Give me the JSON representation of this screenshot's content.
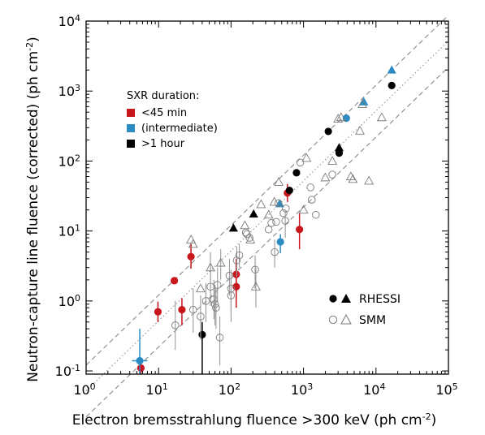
{
  "chart_data": {
    "type": "scatter",
    "xlabel_main": "Electron bremsstrahlung fluence >300 keV (ph cm",
    "xlabel_exp": "-2",
    "xlabel_close": ")",
    "ylabel_main": "Neutron-capture line fluence (corrected)  (ph cm",
    "ylabel_exp": "-2",
    "ylabel_close": ")",
    "x_scale": "log",
    "y_scale": "log",
    "xlim": [
      1,
      100000
    ],
    "ylim": [
      0.09,
      10000
    ],
    "x_ticks": [
      {
        "value": 1,
        "base": "10",
        "exp": "0"
      },
      {
        "value": 10,
        "base": "10",
        "exp": "1"
      },
      {
        "value": 100,
        "base": "10",
        "exp": "2"
      },
      {
        "value": 1000,
        "base": "10",
        "exp": "3"
      },
      {
        "value": 10000,
        "base": "10",
        "exp": "4"
      },
      {
        "value": 100000,
        "base": "10",
        "exp": "5"
      }
    ],
    "y_ticks": [
      {
        "value": 0.1,
        "base": "10",
        "exp": "-1"
      },
      {
        "value": 1,
        "base": "10",
        "exp": "0"
      },
      {
        "value": 10,
        "base": "10",
        "exp": "1"
      },
      {
        "value": 100,
        "base": "10",
        "exp": "2"
      },
      {
        "value": 1000,
        "base": "10",
        "exp": "3"
      },
      {
        "value": 10000,
        "base": "10",
        "exp": "4"
      }
    ],
    "reference_lines": [
      {
        "style": "dashed",
        "points": [
          [
            1,
            0.121
          ],
          [
            100000,
            12100
          ]
        ]
      },
      {
        "style": "dotted",
        "points": [
          [
            1,
            0.052
          ],
          [
            100000,
            5200
          ]
        ]
      },
      {
        "style": "dashed",
        "points": [
          [
            1,
            0.022
          ],
          [
            100000,
            2200
          ]
        ]
      }
    ],
    "color_legend": {
      "title": "SXR duration:",
      "items": [
        {
          "label": "<45 min",
          "color": "#c8161d"
        },
        {
          "label": "(intermediate)",
          "color": "#2b8cc4"
        },
        {
          "label": ">1 hour",
          "color": "#000000"
        }
      ]
    },
    "instrument_legend": [
      {
        "label": "RHESSI",
        "style": "filled"
      },
      {
        "label": "SMM",
        "style": "open"
      }
    ],
    "series": [
      {
        "name": "RHESSI",
        "points": [
          {
            "x": 5.7,
            "y": 0.11,
            "color": "red",
            "marker": "circle",
            "yerr": [
              0.09,
              0.15
            ]
          },
          {
            "x": 9.8,
            "y": 0.7,
            "color": "red",
            "marker": "circle",
            "yerr": [
              0.5,
              0.98
            ]
          },
          {
            "x": 16.5,
            "y": 1.95,
            "color": "red",
            "marker": "circle"
          },
          {
            "x": 21,
            "y": 0.75,
            "color": "red",
            "marker": "circle",
            "yerr": [
              0.45,
              1.1
            ]
          },
          {
            "x": 28,
            "y": 4.3,
            "color": "red",
            "marker": "circle",
            "yerr": [
              2.9,
              6.5
            ]
          },
          {
            "x": 118,
            "y": 2.4,
            "color": "red",
            "marker": "circle",
            "yerr": [
              1.3,
              4.0
            ]
          },
          {
            "x": 118,
            "y": 1.6,
            "color": "red",
            "marker": "circle",
            "yerr": [
              0.8,
              2.7
            ]
          },
          {
            "x": 600,
            "y": 35,
            "color": "red",
            "marker": "circle",
            "yerr": [
              26,
              47
            ]
          },
          {
            "x": 880,
            "y": 10.5,
            "color": "red",
            "marker": "circle",
            "yerr": [
              5.5,
              18
            ]
          },
          {
            "x": 5.5,
            "y": 0.14,
            "color": "blue",
            "marker": "circle",
            "yerr": [
              0.09,
              0.4
            ],
            "xerr": [
              4.3,
              7.0
            ]
          },
          {
            "x": 480,
            "y": 7.0,
            "color": "blue",
            "marker": "circle",
            "yerr": [
              4.8,
              9.0
            ]
          },
          {
            "x": 3900,
            "y": 410,
            "color": "blue",
            "marker": "circle"
          },
          {
            "x": 40,
            "y": 0.33,
            "color": "black",
            "marker": "circle",
            "yerr": [
              0.09,
              0.5
            ]
          },
          {
            "x": 640,
            "y": 38,
            "color": "black",
            "marker": "circle"
          },
          {
            "x": 800,
            "y": 68,
            "color": "black",
            "marker": "circle"
          },
          {
            "x": 2200,
            "y": 265,
            "color": "black",
            "marker": "circle"
          },
          {
            "x": 3100,
            "y": 130,
            "color": "black",
            "marker": "circle"
          },
          {
            "x": 16500,
            "y": 1200,
            "color": "black",
            "marker": "circle"
          },
          {
            "x": 108,
            "y": 11,
            "color": "black",
            "marker": "triangle"
          },
          {
            "x": 205,
            "y": 17.5,
            "color": "black",
            "marker": "triangle"
          },
          {
            "x": 3100,
            "y": 155,
            "color": "black",
            "marker": "triangle"
          },
          {
            "x": 470,
            "y": 24.5,
            "color": "blue",
            "marker": "triangle"
          },
          {
            "x": 6800,
            "y": 700,
            "color": "blue",
            "marker": "triangle"
          },
          {
            "x": 16500,
            "y": 2000,
            "color": "blue",
            "marker": "triangle"
          }
        ]
      },
      {
        "name": "SMM",
        "points": [
          {
            "x": 17,
            "y": 0.45,
            "marker": "circle",
            "yerr": [
              0.2,
              1.0
            ]
          },
          {
            "x": 30,
            "y": 0.75,
            "marker": "circle",
            "yerr": [
              0.35,
              1.5
            ]
          },
          {
            "x": 38,
            "y": 0.6,
            "marker": "circle",
            "yerr": [
              0.28,
              1.2
            ]
          },
          {
            "x": 45,
            "y": 1.0,
            "marker": "circle",
            "yerr": [
              0.5,
              1.8
            ]
          },
          {
            "x": 52,
            "y": 1.6,
            "marker": "circle",
            "yerr": [
              0.85,
              2.7
            ]
          },
          {
            "x": 58,
            "y": 1.05,
            "marker": "circle",
            "yerr": [
              0.55,
              2.0
            ]
          },
          {
            "x": 60,
            "y": 0.9,
            "marker": "circle",
            "yerr": [
              0.45,
              1.7
            ]
          },
          {
            "x": 62,
            "y": 0.8,
            "marker": "circle",
            "yerr": [
              0.4,
              1.5
            ]
          },
          {
            "x": 65,
            "y": 1.7,
            "marker": "circle",
            "yerr": [
              0.95,
              3.0
            ]
          },
          {
            "x": 70,
            "y": 0.3,
            "marker": "circle",
            "yerr": [
              0.12,
              0.6
            ]
          },
          {
            "x": 95,
            "y": 2.3,
            "marker": "circle",
            "yerr": [
              1.2,
              4.0
            ]
          },
          {
            "x": 100,
            "y": 1.5,
            "marker": "circle",
            "yerr": [
              0.7,
              2.8
            ]
          },
          {
            "x": 100,
            "y": 1.2,
            "marker": "circle",
            "yerr": [
              0.5,
              2.2
            ]
          },
          {
            "x": 120,
            "y": 3.8,
            "marker": "circle",
            "yerr": [
              2.2,
              6.0
            ]
          },
          {
            "x": 130,
            "y": 4.5,
            "marker": "circle",
            "yerr": [
              3.0,
              6.5
            ]
          },
          {
            "x": 160,
            "y": 9.5,
            "marker": "circle"
          },
          {
            "x": 165,
            "y": 9.0,
            "marker": "circle"
          },
          {
            "x": 180,
            "y": 8.0,
            "marker": "circle"
          },
          {
            "x": 215,
            "y": 2.8,
            "marker": "circle",
            "yerr": [
              1.5,
              4.5
            ]
          },
          {
            "x": 330,
            "y": 10.5,
            "marker": "circle"
          },
          {
            "x": 360,
            "y": 13,
            "marker": "circle"
          },
          {
            "x": 400,
            "y": 5.0,
            "marker": "circle",
            "yerr": [
              3.0,
              7.5
            ]
          },
          {
            "x": 420,
            "y": 13.5,
            "marker": "circle"
          },
          {
            "x": 450,
            "y": 25,
            "marker": "circle"
          },
          {
            "x": 530,
            "y": 18,
            "marker": "circle"
          },
          {
            "x": 560,
            "y": 14,
            "marker": "circle",
            "yerr": [
              8.0,
              20
            ]
          },
          {
            "x": 570,
            "y": 21,
            "marker": "circle"
          },
          {
            "x": 900,
            "y": 95,
            "marker": "circle"
          },
          {
            "x": 1250,
            "y": 42,
            "marker": "circle"
          },
          {
            "x": 1300,
            "y": 28,
            "marker": "circle"
          },
          {
            "x": 1480,
            "y": 17,
            "marker": "circle"
          },
          {
            "x": 2500,
            "y": 64,
            "marker": "circle"
          },
          {
            "x": 28,
            "y": 7.5,
            "marker": "triangle"
          },
          {
            "x": 30,
            "y": 6.5,
            "marker": "triangle"
          },
          {
            "x": 38,
            "y": 1.5,
            "marker": "triangle"
          },
          {
            "x": 52,
            "y": 3.0,
            "marker": "triangle",
            "yerr": [
              1.5,
              5.0
            ]
          },
          {
            "x": 72,
            "y": 3.5,
            "marker": "triangle",
            "yerr": [
              2.0,
              5.5
            ]
          },
          {
            "x": 155,
            "y": 12,
            "marker": "triangle"
          },
          {
            "x": 185,
            "y": 7.5,
            "marker": "triangle"
          },
          {
            "x": 220,
            "y": 1.6,
            "marker": "triangle",
            "yerr": [
              0.8,
              3.0
            ]
          },
          {
            "x": 260,
            "y": 24,
            "marker": "triangle"
          },
          {
            "x": 330,
            "y": 17,
            "marker": "triangle"
          },
          {
            "x": 395,
            "y": 26,
            "marker": "triangle"
          },
          {
            "x": 455,
            "y": 50,
            "marker": "triangle"
          },
          {
            "x": 1000,
            "y": 20,
            "marker": "triangle"
          },
          {
            "x": 1100,
            "y": 110,
            "marker": "triangle"
          },
          {
            "x": 2000,
            "y": 58,
            "marker": "triangle"
          },
          {
            "x": 2500,
            "y": 100,
            "marker": "triangle"
          },
          {
            "x": 3000,
            "y": 400,
            "marker": "triangle"
          },
          {
            "x": 3300,
            "y": 420,
            "marker": "triangle"
          },
          {
            "x": 4500,
            "y": 60,
            "marker": "triangle"
          },
          {
            "x": 4800,
            "y": 55,
            "marker": "triangle"
          },
          {
            "x": 6000,
            "y": 270,
            "marker": "triangle"
          },
          {
            "x": 6500,
            "y": 650,
            "marker": "triangle"
          },
          {
            "x": 8000,
            "y": 52,
            "marker": "triangle"
          },
          {
            "x": 12000,
            "y": 420,
            "marker": "triangle"
          }
        ]
      }
    ]
  }
}
